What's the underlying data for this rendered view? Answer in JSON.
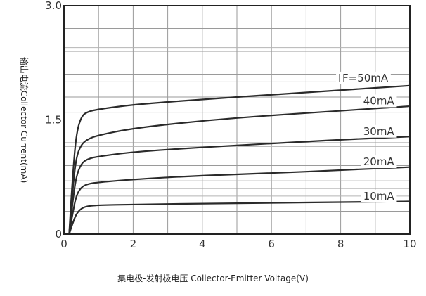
{
  "chart_data": {
    "type": "line",
    "xlabel": "集电极-发射极电压  Collector-Emitter Voltage(V)",
    "ylabel": "输出电流Collector  Current(mA)",
    "xlim": [
      0,
      10
    ],
    "ylim": [
      0,
      3.0
    ],
    "x_ticks": [
      {
        "value": 0,
        "label": "0"
      },
      {
        "value": 2,
        "label": "2"
      },
      {
        "value": 4,
        "label": "4"
      },
      {
        "value": 6,
        "label": "6"
      },
      {
        "value": 8,
        "label": "8"
      },
      {
        "value": 10,
        "label": "10"
      }
    ],
    "y_ticks": [
      {
        "value": 0,
        "label": "0"
      },
      {
        "value": 1.5,
        "label": "1.5"
      },
      {
        "value": 3.0,
        "label": "3.0"
      }
    ],
    "grid": true,
    "series": [
      {
        "name": "IF=10mA",
        "label": "10mA",
        "label_at": [
          9.1,
          0.5
        ],
        "x": [
          0.15,
          0.25,
          0.35,
          0.5,
          0.7,
          1,
          2,
          4,
          6,
          8,
          10
        ],
        "y": [
          0.0,
          0.14,
          0.26,
          0.34,
          0.37,
          0.38,
          0.39,
          0.4,
          0.41,
          0.42,
          0.43
        ]
      },
      {
        "name": "IF=20mA",
        "label": "20mA",
        "label_at": [
          9.1,
          0.95
        ],
        "x": [
          0.15,
          0.25,
          0.35,
          0.5,
          0.7,
          1,
          2,
          4,
          6,
          8,
          10
        ],
        "y": [
          0.0,
          0.27,
          0.5,
          0.62,
          0.66,
          0.68,
          0.72,
          0.77,
          0.8,
          0.84,
          0.88
        ]
      },
      {
        "name": "IF=30mA",
        "label": "30mA",
        "label_at": [
          9.1,
          1.35
        ],
        "x": [
          0.15,
          0.25,
          0.35,
          0.5,
          0.7,
          1,
          2,
          4,
          6,
          8,
          10
        ],
        "y": [
          0.0,
          0.42,
          0.75,
          0.93,
          0.99,
          1.02,
          1.08,
          1.14,
          1.19,
          1.24,
          1.28
        ]
      },
      {
        "name": "IF=40mA",
        "label": "40mA",
        "label_at": [
          9.1,
          1.75
        ],
        "x": [
          0.15,
          0.25,
          0.35,
          0.5,
          0.7,
          1,
          2,
          4,
          6,
          8,
          10
        ],
        "y": [
          0.0,
          0.58,
          1.0,
          1.18,
          1.25,
          1.3,
          1.39,
          1.49,
          1.56,
          1.62,
          1.68
        ]
      },
      {
        "name": "IF=50mA",
        "label": "I F=50mA",
        "label_at": [
          8.65,
          2.05
        ],
        "x": [
          0.15,
          0.25,
          0.35,
          0.5,
          0.7,
          1,
          2,
          4,
          6,
          8,
          10
        ],
        "y": [
          0.0,
          0.75,
          1.3,
          1.55,
          1.61,
          1.64,
          1.7,
          1.77,
          1.83,
          1.89,
          1.95
        ]
      }
    ]
  }
}
